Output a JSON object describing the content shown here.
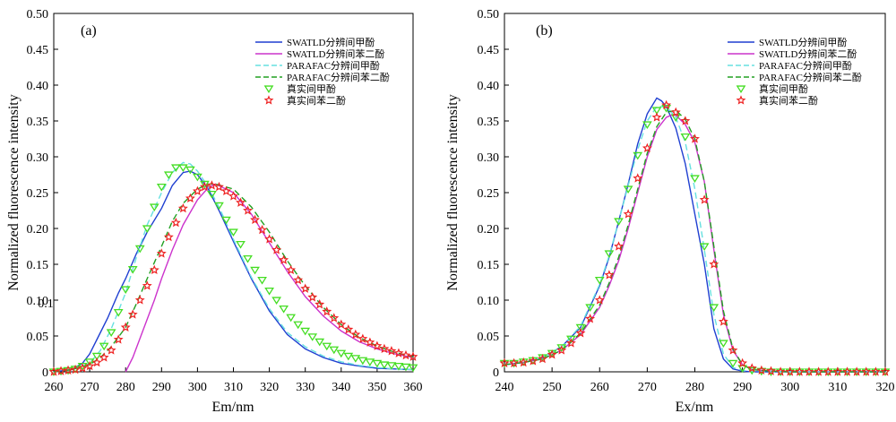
{
  "charts": [
    {
      "panel_label": "(a)",
      "xlabel": "Em/nm",
      "ylabel": "Normalized fluorescence intensity",
      "stray_label": "0.1",
      "xticks": [
        "260",
        "270",
        "280",
        "290",
        "300",
        "310",
        "320",
        "330",
        "340",
        "350",
        "360"
      ],
      "yticks": [
        "0",
        "0.05",
        "0.10",
        "0.15",
        "0.20",
        "0.25",
        "0.30",
        "0.35",
        "0.40",
        "0.45",
        "0.50"
      ]
    },
    {
      "panel_label": "(b)",
      "xlabel": "Ex/nm",
      "ylabel": "Normalized fluorescence intensity",
      "xticks": [
        "240",
        "250",
        "260",
        "270",
        "280",
        "290",
        "300",
        "310",
        "320"
      ],
      "yticks": [
        "0",
        "0.05",
        "0.10",
        "0.15",
        "0.20",
        "0.25",
        "0.30",
        "0.35",
        "0.40",
        "0.45",
        "0.50"
      ]
    }
  ],
  "chart_data": [
    {
      "type": "line",
      "title": "",
      "xlabel": "Em/nm",
      "ylabel": "Normalized fluorescence intensity",
      "xlim": [
        260,
        360
      ],
      "ylim": [
        0,
        0.5
      ],
      "grid": false,
      "legend_position": "top-right",
      "series": [
        {
          "name": "SWATLD分辨间甲酚",
          "style": "solid-line",
          "color": "#1f3fd1",
          "x": [
            260,
            265,
            268,
            270,
            272,
            275,
            278,
            280,
            283,
            286,
            290,
            293,
            296,
            298,
            300,
            303,
            306,
            310,
            315,
            320,
            325,
            330,
            335,
            340,
            345,
            350,
            355,
            360
          ],
          "y": [
            0.0,
            0.003,
            0.012,
            0.025,
            0.045,
            0.075,
            0.11,
            0.13,
            0.165,
            0.195,
            0.228,
            0.26,
            0.278,
            0.28,
            0.275,
            0.255,
            0.225,
            0.182,
            0.13,
            0.085,
            0.052,
            0.032,
            0.02,
            0.012,
            0.008,
            0.005,
            0.004,
            0.003
          ]
        },
        {
          "name": "SWATLD分辨间苯二酚",
          "style": "solid-line",
          "color": "#cc33cc",
          "x": [
            280,
            282,
            285,
            288,
            290,
            293,
            296,
            300,
            303,
            305,
            310,
            315,
            320,
            325,
            330,
            335,
            340,
            345,
            350,
            355,
            360
          ],
          "y": [
            0.0,
            0.02,
            0.06,
            0.1,
            0.13,
            0.17,
            0.205,
            0.24,
            0.257,
            0.262,
            0.25,
            0.22,
            0.18,
            0.14,
            0.105,
            0.078,
            0.057,
            0.042,
            0.032,
            0.025,
            0.02
          ]
        },
        {
          "name": "PARAFAC分辨间甲酚",
          "style": "dashed-line",
          "color": "#66e0e0",
          "x": [
            260,
            265,
            270,
            273,
            276,
            280,
            283,
            286,
            290,
            293,
            296,
            298,
            300,
            303,
            306,
            310,
            315,
            320,
            325,
            330,
            335,
            340,
            345,
            350,
            355,
            360
          ],
          "y": [
            0.0,
            0.003,
            0.012,
            0.03,
            0.06,
            0.11,
            0.16,
            0.205,
            0.25,
            0.278,
            0.292,
            0.29,
            0.28,
            0.258,
            0.23,
            0.185,
            0.132,
            0.088,
            0.055,
            0.035,
            0.022,
            0.014,
            0.009,
            0.006,
            0.004,
            0.003
          ]
        },
        {
          "name": "PARAFAC分辨间苯二酚",
          "style": "dashed-line",
          "color": "#22a022",
          "x": [
            260,
            265,
            270,
            273,
            276,
            280,
            283,
            286,
            290,
            293,
            296,
            300,
            303,
            305,
            310,
            315,
            320,
            325,
            330,
            335,
            340,
            345,
            350,
            355,
            360
          ],
          "y": [
            0.0,
            0.003,
            0.01,
            0.02,
            0.035,
            0.062,
            0.095,
            0.13,
            0.175,
            0.21,
            0.235,
            0.255,
            0.262,
            0.262,
            0.255,
            0.23,
            0.195,
            0.155,
            0.12,
            0.09,
            0.066,
            0.048,
            0.036,
            0.027,
            0.021
          ]
        },
        {
          "name": "真实间甲酚",
          "style": "triangle-marker",
          "color": "#44dd22",
          "x": [
            260,
            262,
            264,
            266,
            268,
            270,
            272,
            274,
            276,
            278,
            280,
            282,
            284,
            286,
            288,
            290,
            292,
            294,
            296,
            298,
            300,
            302,
            304,
            306,
            308,
            310,
            312,
            314,
            316,
            318,
            320,
            322,
            324,
            326,
            328,
            330,
            332,
            334,
            336,
            338,
            340,
            342,
            344,
            346,
            348,
            350,
            352,
            354,
            356,
            358,
            360
          ],
          "y": [
            0.0,
            0.001,
            0.002,
            0.004,
            0.008,
            0.014,
            0.022,
            0.036,
            0.055,
            0.083,
            0.115,
            0.143,
            0.172,
            0.2,
            0.23,
            0.258,
            0.275,
            0.285,
            0.285,
            0.282,
            0.272,
            0.262,
            0.248,
            0.232,
            0.212,
            0.195,
            0.178,
            0.158,
            0.142,
            0.128,
            0.113,
            0.1,
            0.088,
            0.076,
            0.066,
            0.057,
            0.049,
            0.042,
            0.036,
            0.031,
            0.026,
            0.022,
            0.019,
            0.016,
            0.014,
            0.012,
            0.01,
            0.009,
            0.008,
            0.007,
            0.006
          ]
        },
        {
          "name": "真实间苯二酚",
          "style": "star-marker",
          "color": "#ee2222",
          "x": [
            260,
            262,
            264,
            266,
            268,
            270,
            272,
            274,
            276,
            278,
            280,
            282,
            284,
            286,
            288,
            290,
            292,
            294,
            296,
            298,
            300,
            302,
            304,
            306,
            308,
            310,
            312,
            314,
            316,
            318,
            320,
            322,
            324,
            326,
            328,
            330,
            332,
            334,
            336,
            338,
            340,
            342,
            344,
            346,
            348,
            350,
            352,
            354,
            356,
            358,
            360
          ],
          "y": [
            0.0,
            0.001,
            0.002,
            0.003,
            0.005,
            0.008,
            0.013,
            0.02,
            0.03,
            0.045,
            0.062,
            0.08,
            0.1,
            0.12,
            0.142,
            0.165,
            0.188,
            0.208,
            0.228,
            0.242,
            0.252,
            0.258,
            0.26,
            0.258,
            0.252,
            0.245,
            0.236,
            0.225,
            0.212,
            0.198,
            0.185,
            0.17,
            0.156,
            0.142,
            0.128,
            0.116,
            0.104,
            0.094,
            0.084,
            0.075,
            0.066,
            0.059,
            0.052,
            0.046,
            0.041,
            0.036,
            0.032,
            0.029,
            0.026,
            0.023,
            0.021
          ]
        }
      ]
    },
    {
      "type": "line",
      "title": "",
      "xlabel": "Ex/nm",
      "ylabel": "Normalized fluorescence intensity",
      "xlim": [
        240,
        320
      ],
      "ylim": [
        0,
        0.5
      ],
      "grid": false,
      "legend_position": "top-right",
      "series": [
        {
          "name": "SWATLD分辨间甲酚",
          "style": "solid-line",
          "color": "#1f3fd1",
          "x": [
            240,
            244,
            248,
            252,
            256,
            260,
            262,
            264,
            266,
            268,
            270,
            272,
            273,
            274,
            276,
            278,
            280,
            282,
            284,
            286,
            288,
            290,
            292,
            296,
            300,
            310,
            320
          ],
          "y": [
            0.01,
            0.013,
            0.02,
            0.035,
            0.062,
            0.12,
            0.16,
            0.21,
            0.262,
            0.318,
            0.36,
            0.382,
            0.378,
            0.37,
            0.34,
            0.29,
            0.22,
            0.15,
            0.06,
            0.018,
            0.004,
            0.001,
            0.0,
            0.0,
            0.0,
            0.0,
            0.0
          ]
        },
        {
          "name": "SWATLD分辨间苯二酚",
          "style": "solid-line",
          "color": "#cc33cc",
          "x": [
            240,
            244,
            248,
            252,
            256,
            260,
            262,
            264,
            266,
            268,
            270,
            272,
            274,
            275,
            276,
            278,
            280,
            282,
            284,
            286,
            288,
            290,
            292,
            296,
            300,
            310,
            320
          ],
          "y": [
            0.01,
            0.013,
            0.018,
            0.03,
            0.052,
            0.09,
            0.12,
            0.155,
            0.2,
            0.25,
            0.3,
            0.338,
            0.355,
            0.358,
            0.358,
            0.345,
            0.32,
            0.265,
            0.17,
            0.08,
            0.03,
            0.01,
            0.003,
            0.001,
            0.0,
            0.0,
            0.0
          ]
        },
        {
          "name": "PARAFAC分辨间甲酚",
          "style": "dashed-line",
          "color": "#66e0e0",
          "x": [
            240,
            244,
            248,
            252,
            256,
            260,
            262,
            264,
            266,
            268,
            270,
            272,
            274,
            276,
            278,
            280,
            282,
            284,
            286,
            288,
            290,
            292,
            296,
            300,
            310,
            320
          ],
          "y": [
            0.01,
            0.013,
            0.02,
            0.035,
            0.064,
            0.122,
            0.162,
            0.21,
            0.26,
            0.31,
            0.35,
            0.37,
            0.37,
            0.355,
            0.32,
            0.255,
            0.17,
            0.08,
            0.025,
            0.006,
            0.002,
            0.0,
            0.0,
            0.0,
            0.0,
            0.0
          ]
        },
        {
          "name": "PARAFAC分辨间苯二酚",
          "style": "dashed-line",
          "color": "#22a022",
          "x": [
            240,
            244,
            248,
            252,
            256,
            260,
            262,
            264,
            266,
            268,
            270,
            272,
            274,
            276,
            278,
            280,
            282,
            284,
            286,
            288,
            290,
            292,
            296,
            300,
            310,
            320
          ],
          "y": [
            0.01,
            0.013,
            0.018,
            0.03,
            0.054,
            0.093,
            0.124,
            0.16,
            0.205,
            0.255,
            0.305,
            0.342,
            0.362,
            0.365,
            0.352,
            0.325,
            0.265,
            0.175,
            0.085,
            0.032,
            0.01,
            0.003,
            0.001,
            0.0,
            0.0,
            0.0
          ]
        },
        {
          "name": "真实间甲酚",
          "style": "triangle-marker",
          "color": "#44dd22",
          "x": [
            240,
            242,
            244,
            246,
            248,
            250,
            252,
            254,
            256,
            258,
            260,
            262,
            264,
            266,
            268,
            270,
            272,
            274,
            276,
            278,
            280,
            282,
            284,
            286,
            288,
            290,
            292,
            294,
            296,
            298,
            300,
            302,
            304,
            306,
            308,
            310,
            312,
            314,
            316,
            318,
            320
          ],
          "y": [
            0.012,
            0.012,
            0.014,
            0.016,
            0.02,
            0.026,
            0.034,
            0.046,
            0.062,
            0.09,
            0.128,
            0.165,
            0.21,
            0.255,
            0.302,
            0.345,
            0.365,
            0.368,
            0.355,
            0.328,
            0.27,
            0.175,
            0.09,
            0.04,
            0.012,
            0.005,
            0.002,
            0.001,
            0.0,
            0.0,
            0.0,
            0.0,
            0.0,
            0.0,
            0.0,
            0.0,
            0.0,
            0.0,
            0.0,
            0.0,
            0.0
          ]
        },
        {
          "name": "真实间苯二酚",
          "style": "star-marker",
          "color": "#ee2222",
          "x": [
            240,
            242,
            244,
            246,
            248,
            250,
            252,
            254,
            256,
            258,
            260,
            262,
            264,
            266,
            268,
            270,
            272,
            274,
            276,
            278,
            280,
            282,
            284,
            286,
            288,
            290,
            292,
            294,
            296,
            298,
            300,
            302,
            304,
            306,
            308,
            310,
            312,
            314,
            316,
            318,
            320
          ],
          "y": [
            0.012,
            0.012,
            0.013,
            0.015,
            0.018,
            0.024,
            0.03,
            0.04,
            0.054,
            0.074,
            0.1,
            0.135,
            0.175,
            0.22,
            0.27,
            0.312,
            0.355,
            0.372,
            0.362,
            0.35,
            0.325,
            0.24,
            0.15,
            0.07,
            0.03,
            0.012,
            0.005,
            0.002,
            0.001,
            0.0,
            0.0,
            0.0,
            0.0,
            0.0,
            0.0,
            0.0,
            0.0,
            0.0,
            0.0,
            0.0,
            0.0
          ]
        }
      ]
    }
  ]
}
